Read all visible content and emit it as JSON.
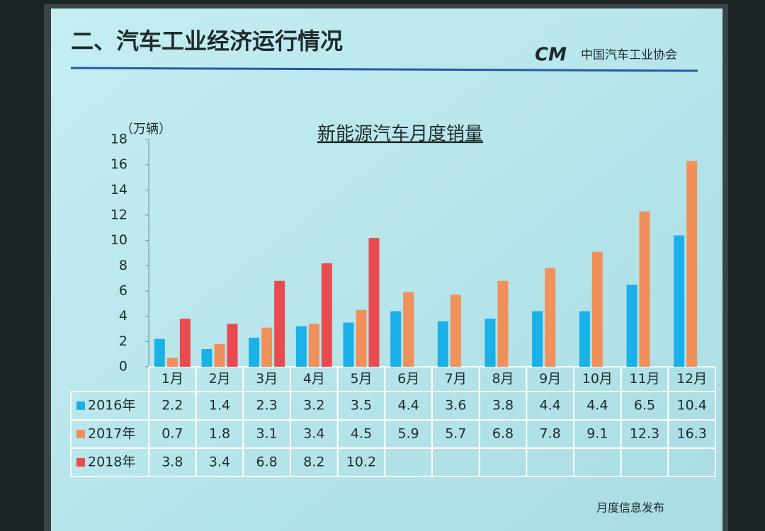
{
  "header": {
    "title": "二、汽车工业经济运行情况",
    "logo_text": "中国汽车工业协会"
  },
  "footer": {
    "text": "月度信息发布"
  },
  "chart_data": {
    "type": "bar",
    "title": "新能源汽车月度销量",
    "y_label": "（万辆）",
    "categories": [
      "1月",
      "2月",
      "3月",
      "4月",
      "5月",
      "6月",
      "7月",
      "8月",
      "9月",
      "10月",
      "11月",
      "12月"
    ],
    "series": [
      {
        "name": "2016年",
        "color": "#1ab0e8",
        "values": [
          2.2,
          1.4,
          2.3,
          3.2,
          3.5,
          4.4,
          3.6,
          3.8,
          4.4,
          4.4,
          6.5,
          10.4
        ]
      },
      {
        "name": "2017年",
        "color": "#f0905a",
        "values": [
          0.7,
          1.8,
          3.1,
          3.4,
          4.5,
          5.9,
          5.7,
          6.8,
          7.8,
          9.1,
          12.3,
          16.3
        ]
      },
      {
        "name": "2018年",
        "color": "#e84c50",
        "values": [
          3.8,
          3.4,
          6.8,
          8.2,
          10.2,
          null,
          null,
          null,
          null,
          null,
          null,
          null
        ]
      }
    ],
    "ylim": [
      0,
      18
    ],
    "yticks": [
      0,
      2,
      4,
      6,
      8,
      10,
      12,
      14,
      16,
      18
    ]
  }
}
